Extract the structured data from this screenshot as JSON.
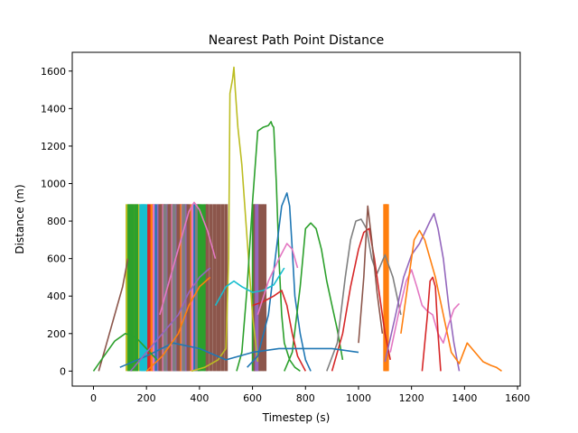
{
  "chart_data": {
    "type": "line",
    "title": "Nearest Path Point Distance",
    "xlabel": "Timestep (s)",
    "ylabel": "Distance (m)",
    "xlim": [
      -80,
      1610
    ],
    "ylim": [
      -80,
      1700
    ],
    "xticks": [
      0,
      200,
      400,
      600,
      800,
      1000,
      1200,
      1400,
      1600
    ],
    "yticks": [
      0,
      200,
      400,
      600,
      800,
      1000,
      1200,
      1400,
      1600
    ],
    "grid": false,
    "legend": "none",
    "colors": [
      "#1f77b4",
      "#ff7f0e",
      "#2ca02c",
      "#d62728",
      "#9467bd",
      "#8c564b",
      "#e377c2",
      "#7f7f7f",
      "#bcbd22",
      "#17becf"
    ],
    "series": [
      {
        "color": "#bcbd22",
        "x": [
          370,
          420,
          470,
          500,
          510,
          515,
          520,
          525,
          530,
          535,
          545,
          560,
          580,
          600,
          620
        ],
        "y": [
          0,
          20,
          60,
          120,
          600,
          1480,
          1520,
          1560,
          1620,
          1500,
          1300,
          1100,
          700,
          300,
          50
        ]
      },
      {
        "color": "#2ca02c",
        "x": [
          540,
          560,
          580,
          600,
          620,
          640,
          660,
          670,
          675,
          680,
          690,
          700,
          710,
          720,
          740,
          760,
          780
        ],
        "y": [
          0,
          100,
          450,
          900,
          1280,
          1300,
          1310,
          1330,
          1310,
          1300,
          1000,
          600,
          300,
          150,
          60,
          20,
          0
        ]
      },
      {
        "color": "#1f77b4",
        "x": [
          580,
          620,
          660,
          690,
          710,
          730,
          740,
          750,
          760,
          780,
          800,
          820
        ],
        "y": [
          20,
          80,
          300,
          650,
          880,
          950,
          880,
          650,
          400,
          200,
          60,
          0
        ]
      },
      {
        "color": "#2ca02c",
        "x": [
          720,
          750,
          780,
          800,
          820,
          840,
          860,
          880,
          900,
          920,
          940
        ],
        "y": [
          0,
          100,
          450,
          760,
          790,
          760,
          650,
          480,
          350,
          220,
          60
        ]
      },
      {
        "color": "#7f7f7f",
        "x": [
          880,
          920,
          950,
          970,
          990,
          1010,
          1030,
          1050,
          1070,
          1100,
          1130,
          1160
        ],
        "y": [
          0,
          150,
          500,
          700,
          800,
          810,
          760,
          600,
          520,
          620,
          500,
          300
        ]
      },
      {
        "color": "#d62728",
        "x": [
          900,
          940,
          970,
          1000,
          1020,
          1040,
          1060,
          1080,
          1100,
          1120
        ],
        "y": [
          0,
          200,
          450,
          650,
          740,
          760,
          600,
          400,
          200,
          60
        ]
      },
      {
        "color": "#8c564b",
        "x": [
          1000,
          1020,
          1035,
          1050,
          1070,
          1090
        ],
        "y": [
          150,
          500,
          880,
          700,
          420,
          200
        ]
      },
      {
        "color": "#9467bd",
        "x": [
          1100,
          1140,
          1170,
          1200,
          1230,
          1250,
          1270,
          1285,
          1300,
          1320,
          1340,
          1360,
          1380
        ],
        "y": [
          50,
          300,
          500,
          620,
          680,
          740,
          800,
          840,
          760,
          600,
          350,
          150,
          0
        ]
      },
      {
        "color": "#e377c2",
        "x": [
          1120,
          1150,
          1180,
          1200,
          1220,
          1240,
          1260,
          1280,
          1300,
          1320,
          1340,
          1360,
          1380
        ],
        "y": [
          100,
          300,
          480,
          540,
          450,
          350,
          320,
          300,
          200,
          150,
          250,
          330,
          360
        ]
      },
      {
        "color": "#ff7f0e",
        "x": [
          1160,
          1190,
          1210,
          1230,
          1250,
          1270,
          1290,
          1320,
          1350,
          1380,
          1410,
          1440,
          1470,
          1500,
          1520,
          1540
        ],
        "y": [
          200,
          500,
          700,
          750,
          700,
          600,
          500,
          300,
          100,
          40,
          150,
          100,
          50,
          30,
          20,
          0
        ]
      },
      {
        "color": "#d62728",
        "x": [
          1240,
          1260,
          1270,
          1280,
          1290,
          1300,
          1310
        ],
        "y": [
          0,
          300,
          480,
          500,
          450,
          200,
          0
        ]
      },
      {
        "color": "#8c564b",
        "x": [
          20,
          50,
          80,
          110,
          130
        ],
        "y": [
          0,
          150,
          300,
          450,
          600
        ]
      },
      {
        "color": "#e377c2",
        "x": [
          250,
          290,
          330,
          360,
          380,
          400,
          430,
          460
        ],
        "y": [
          300,
          500,
          700,
          850,
          900,
          860,
          750,
          600
        ]
      },
      {
        "color": "#17becf",
        "x": [
          460,
          500,
          530,
          560,
          600,
          640,
          680,
          720
        ],
        "y": [
          350,
          450,
          480,
          450,
          420,
          430,
          460,
          550
        ]
      },
      {
        "color": "#d62728",
        "x": [
          600,
          640,
          680,
          710,
          730,
          750,
          770,
          800
        ],
        "y": [
          350,
          370,
          400,
          430,
          350,
          200,
          80,
          0
        ]
      },
      {
        "color": "#e377c2",
        "x": [
          620,
          660,
          700,
          730,
          750,
          770
        ],
        "y": [
          300,
          480,
          600,
          680,
          650,
          550
        ]
      },
      {
        "color": "#1f77b4",
        "x": [
          100,
          200,
          300,
          400,
          500,
          600,
          700,
          800,
          900,
          1000
        ],
        "y": [
          20,
          80,
          150,
          120,
          60,
          100,
          120,
          120,
          120,
          100
        ]
      },
      {
        "color": "#2ca02c",
        "x": [
          0,
          40,
          80,
          120,
          160,
          200,
          240
        ],
        "y": [
          0,
          80,
          160,
          200,
          180,
          120,
          60
        ]
      },
      {
        "color": "#9467bd",
        "x": [
          140,
          200,
          260,
          320,
          360,
          400,
          440
        ],
        "y": [
          0,
          100,
          200,
          300,
          420,
          500,
          550
        ]
      },
      {
        "color": "#ff7f0e",
        "x": [
          200,
          260,
          320,
          360,
          400,
          440
        ],
        "y": [
          0,
          80,
          200,
          350,
          450,
          500
        ]
      }
    ],
    "bands": [
      {
        "color": "#bcbd22",
        "x": [
          128,
          142,
          156,
          170
        ],
        "ylow": 0,
        "yhigh": 890
      },
      {
        "color": "#2ca02c",
        "x": [
          135,
          148,
          162
        ],
        "ylow": 0,
        "yhigh": 890
      },
      {
        "color": "#17becf",
        "x": [
          180,
          186,
          192,
          198
        ],
        "ylow": 0,
        "yhigh": 890
      },
      {
        "color": "#d62728",
        "x": [
          210,
          226,
          262,
          296,
          332
        ],
        "ylow": 0,
        "yhigh": 890
      },
      {
        "color": "#ff7f0e",
        "x": [
          222,
          258,
          290,
          328,
          370
        ],
        "ylow": 0,
        "yhigh": 890
      },
      {
        "color": "#e377c2",
        "x": [
          230,
          266,
          300,
          338,
          376
        ],
        "ylow": 0,
        "yhigh": 890
      },
      {
        "color": "#1f77b4",
        "x": [
          238,
          274,
          308,
          346,
          384
        ],
        "ylow": 0,
        "yhigh": 890
      },
      {
        "color": "#9467bd",
        "x": [
          246,
          282,
          316,
          352
        ],
        "ylow": 0,
        "yhigh": 890
      },
      {
        "color": "#8c564b",
        "x": [
          252,
          286,
          320,
          358,
          396
        ],
        "ylow": 0,
        "yhigh": 890
      },
      {
        "color": "#7f7f7f",
        "x": [
          270,
          304,
          340,
          390
        ],
        "ylow": 0,
        "yhigh": 890
      },
      {
        "color": "#2ca02c",
        "x": [
          400,
          412,
          424
        ],
        "ylow": 0,
        "yhigh": 890
      },
      {
        "color": "#8c564b",
        "x": [
          430,
          444,
          458,
          472,
          486,
          500
        ],
        "ylow": 0,
        "yhigh": 890
      },
      {
        "color": "#2ca02c",
        "x": [
          604
        ],
        "ylow": 0,
        "yhigh": 890
      },
      {
        "color": "#8c564b",
        "x": [
          610,
          622,
          634,
          646
        ],
        "ylow": 0,
        "yhigh": 890
      },
      {
        "color": "#9467bd",
        "x": [
          616
        ],
        "ylow": 0,
        "yhigh": 890
      },
      {
        "color": "#ff7f0e",
        "x": [
          1100,
          1104,
          1108
        ],
        "ylow": 0,
        "yhigh": 890
      }
    ]
  }
}
